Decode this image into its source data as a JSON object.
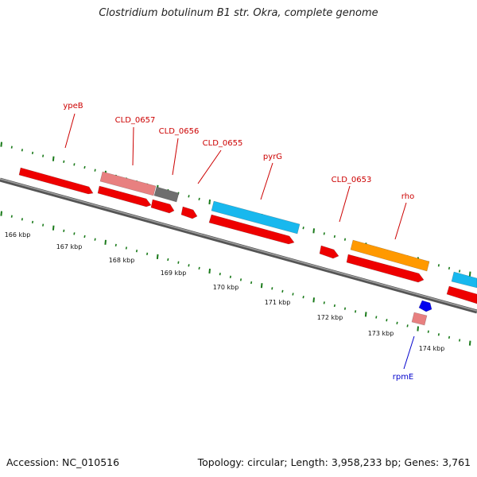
{
  "title": "Clostridium botulinum B1 str. Okra, complete genome",
  "accession": "Accession: NC_010516",
  "summary": "Topology: circular; Length: 3,958,233 bp; Genes: 3,761",
  "colors": {
    "backbone": "#7a7a7a",
    "tick": "#1a7a1a",
    "label_forward": "#cc0000",
    "label_reverse": "#0000cc",
    "cds": "#ee0000",
    "pseudo": "#e88080",
    "other": "#6e6e6e",
    "blue_feature": "#18b8ee",
    "orange_feature": "#ff9900",
    "small_blue": "#0000ee"
  },
  "scale_labels": [
    "166 kbp",
    "167 kbp",
    "168 kbp",
    "169 kbp",
    "170 kbp",
    "171 kbp",
    "172 kbp",
    "173 kbp",
    "174 kbp"
  ],
  "gene_labels": [
    {
      "text": "ypeB",
      "strand": "forward"
    },
    {
      "text": "CLD_0657",
      "strand": "forward"
    },
    {
      "text": "CLD_0656",
      "strand": "forward"
    },
    {
      "text": "CLD_0655",
      "strand": "forward"
    },
    {
      "text": "pyrG",
      "strand": "forward"
    },
    {
      "text": "CLD_0653",
      "strand": "forward"
    },
    {
      "text": "rho",
      "strand": "forward"
    },
    {
      "text": "rpmE",
      "strand": "reverse"
    }
  ]
}
